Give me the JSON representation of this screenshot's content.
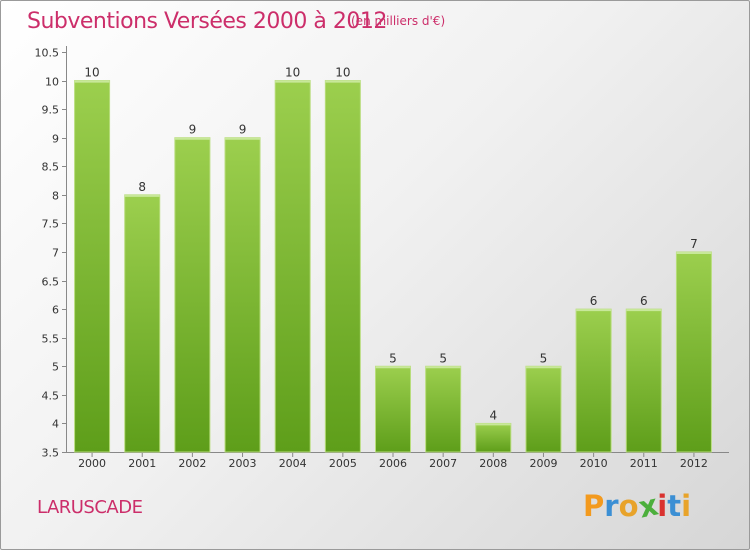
{
  "header": {
    "title": "Subventions Versées 2000 à 2012",
    "unit": "(en milliers d'€)"
  },
  "commune": "LARUSCADE",
  "logo": {
    "letters": [
      "P",
      "r",
      "o",
      "x",
      "i",
      "t",
      "i"
    ],
    "colors": [
      "#f39a1e",
      "#3b8fd4",
      "#e8a32a",
      "#4caf3c",
      "#d9322f",
      "#3b8fd4",
      "#e8a32a"
    ]
  },
  "chart_data": {
    "type": "bar",
    "categories": [
      "2000",
      "2001",
      "2002",
      "2003",
      "2004",
      "2005",
      "2006",
      "2007",
      "2008",
      "2009",
      "2010",
      "2011",
      "2012"
    ],
    "values": [
      10,
      8,
      9,
      9,
      10,
      10,
      5,
      5,
      4,
      5,
      6,
      6,
      7
    ],
    "ylim": [
      3.5,
      10.5
    ],
    "yticks": [
      "3.5",
      "4",
      "4.5",
      "5",
      "5.5",
      "6",
      "6.5",
      "7",
      "7.5",
      "8",
      "8.5",
      "9",
      "9.5",
      "10",
      "10.5"
    ],
    "grid": false,
    "bar_color_top": "#9ccf4e",
    "bar_color_bottom": "#5e9e1a"
  }
}
